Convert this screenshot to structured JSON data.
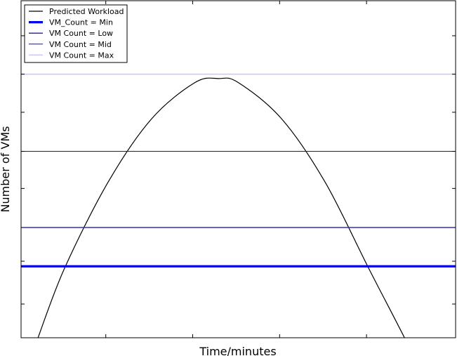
{
  "chart_data": {
    "type": "line",
    "title": "",
    "xlabel": "Time/minutes",
    "ylabel": "Number of VMs",
    "xlim": [
      0,
      100
    ],
    "ylim": [
      0,
      100
    ],
    "grid": false,
    "legend_position": "top-left",
    "series": [
      {
        "name": "Predicted Workload",
        "kind": "curve",
        "color": "#000000",
        "width": 1.2,
        "x": [
          3.9,
          10,
          20,
          30,
          40,
          45.5,
          50,
          60,
          70,
          80,
          88.9,
          91.9
        ],
        "y": [
          0,
          20.6,
          46.1,
          64.9,
          75.7,
          76.9,
          75.7,
          64.9,
          46.1,
          20.6,
          -1.7,
          -10.7
        ]
      },
      {
        "name": "VM_Count = Min",
        "kind": "hline",
        "y": 21.2,
        "color": "#0000ee",
        "width": 3.2
      },
      {
        "name": "VM Count = Low",
        "kind": "hline",
        "y": 32.7,
        "color": "#3030b0",
        "width": 1.5
      },
      {
        "name": "VM Count = Mid",
        "kind": "hline",
        "y": 55.3,
        "color": "#1a1a66",
        "width": 1
      },
      {
        "name": "VM Count = Max",
        "kind": "hline",
        "y": 78.2,
        "color": "#c8c8f0",
        "width": 1.5
      }
    ]
  }
}
